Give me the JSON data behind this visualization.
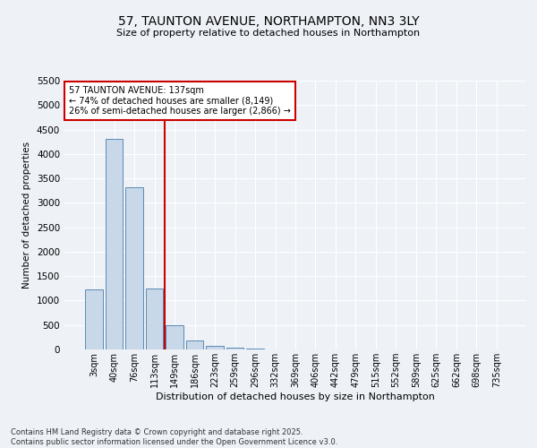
{
  "title_line1": "57, TAUNTON AVENUE, NORTHAMPTON, NN3 3LY",
  "title_line2": "Size of property relative to detached houses in Northampton",
  "xlabel": "Distribution of detached houses by size in Northampton",
  "ylabel": "Number of detached properties",
  "categories": [
    "3sqm",
    "40sqm",
    "76sqm",
    "113sqm",
    "149sqm",
    "186sqm",
    "223sqm",
    "259sqm",
    "296sqm",
    "332sqm",
    "369sqm",
    "406sqm",
    "442sqm",
    "479sqm",
    "515sqm",
    "552sqm",
    "589sqm",
    "625sqm",
    "662sqm",
    "698sqm",
    "735sqm"
  ],
  "bar_values": [
    1220,
    4300,
    3320,
    1240,
    490,
    190,
    70,
    30,
    10,
    0,
    0,
    0,
    0,
    0,
    0,
    0,
    0,
    0,
    0,
    0,
    0
  ],
  "bar_color": "#c8d8e8",
  "bar_edge_color": "#5a8ab5",
  "vline_color": "#cc0000",
  "ylim": [
    0,
    5500
  ],
  "yticks": [
    0,
    500,
    1000,
    1500,
    2000,
    2500,
    3000,
    3500,
    4000,
    4500,
    5000,
    5500
  ],
  "annotation_title": "57 TAUNTON AVENUE: 137sqm",
  "annotation_line1": "← 74% of detached houses are smaller (8,149)",
  "annotation_line2": "26% of semi-detached houses are larger (2,866) →",
  "annotation_box_color": "#ffffff",
  "annotation_edge_color": "#cc0000",
  "footer_line1": "Contains HM Land Registry data © Crown copyright and database right 2025.",
  "footer_line2": "Contains public sector information licensed under the Open Government Licence v3.0.",
  "bg_color": "#eef2f7",
  "grid_color": "#ffffff"
}
